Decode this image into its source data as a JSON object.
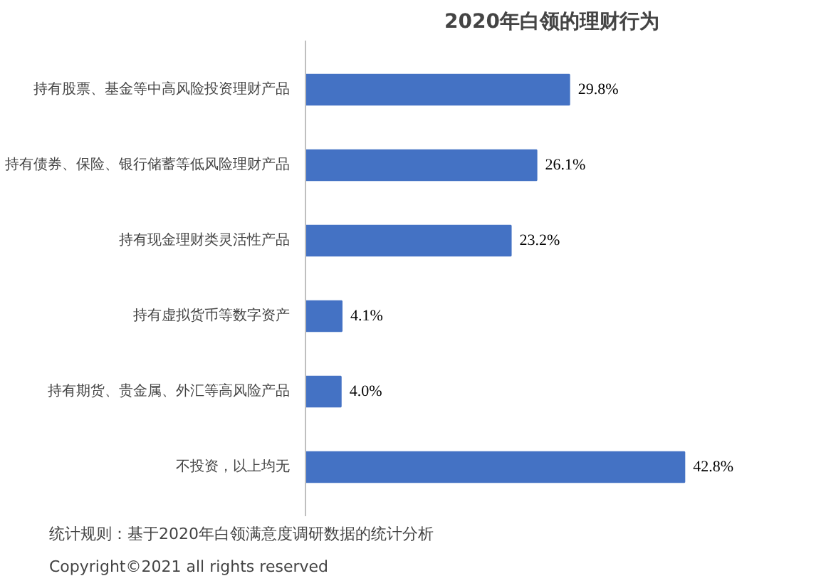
{
  "chart_data": {
    "type": "bar",
    "orientation": "horizontal",
    "title": "2020年白领的理财行为",
    "categories": [
      "持有股票、基金等中高风险投资理财产品",
      "持有债券、保险、银行储蓄等低风险理财产品",
      "持有现金理财类灵活性产品",
      "持有虚拟货币等数字资产",
      "持有期货、贵金属、外汇等高风险产品",
      "不投资，以上均无"
    ],
    "values": [
      29.8,
      26.1,
      23.2,
      4.1,
      4.0,
      42.8
    ],
    "value_labels": [
      "29.8%",
      "26.1%",
      "23.2%",
      "4.1%",
      "4.0%",
      "42.8%"
    ],
    "color": "#4472c4",
    "grid": false,
    "annotations": [
      "统计规则：基于2020年白领满意度调研数据的统计分析",
      "Copyright©2021 all rights reserved"
    ]
  }
}
